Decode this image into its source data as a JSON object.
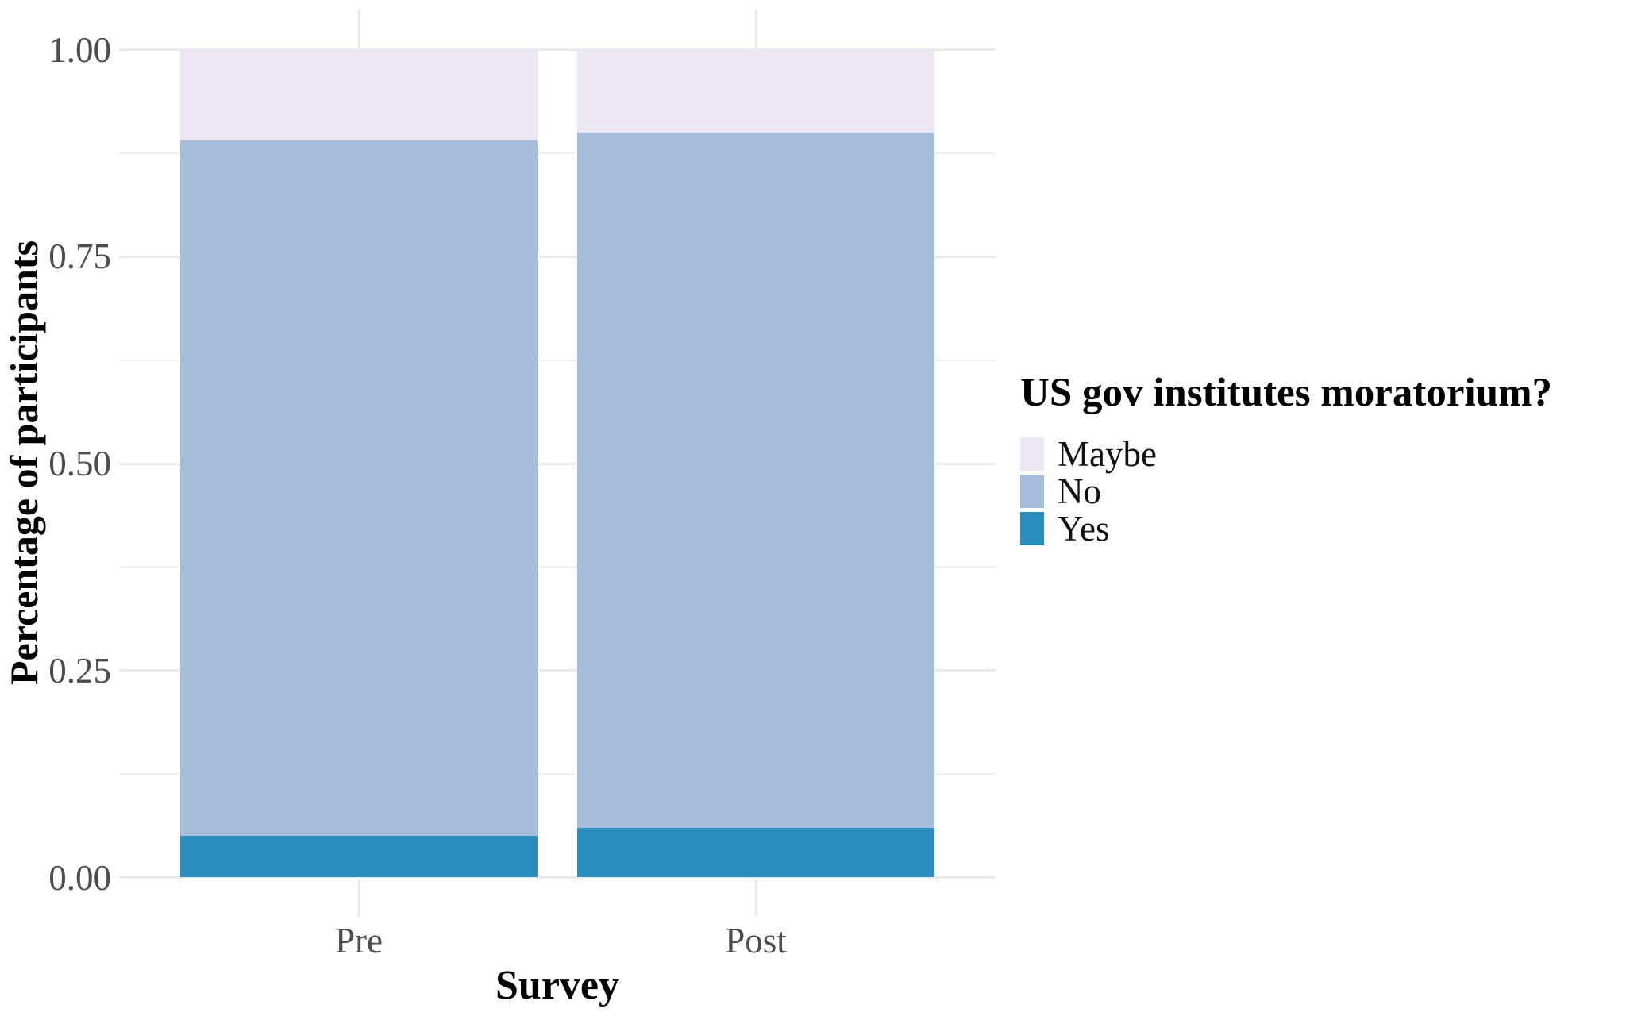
{
  "chart_data": {
    "type": "bar",
    "subtype": "stacked-percentage",
    "title": "",
    "xlabel": "Survey",
    "ylabel": "Percentage of participants",
    "categories": [
      "Pre",
      "Post"
    ],
    "series": [
      {
        "name": "Maybe",
        "color": "#ece7f2",
        "values": [
          0.11,
          0.1
        ]
      },
      {
        "name": "No",
        "color": "#a6bddb",
        "values": [
          0.84,
          0.84
        ]
      },
      {
        "name": "Yes",
        "color": "#2b8cbe",
        "values": [
          0.05,
          0.06
        ]
      }
    ],
    "stack_bottom_to_top": [
      "Yes",
      "No",
      "Maybe"
    ],
    "ylim": [
      0,
      1
    ],
    "y_ticks": [
      {
        "label": "0.00",
        "value": 0.0
      },
      {
        "label": "0.25",
        "value": 0.25
      },
      {
        "label": "0.50",
        "value": 0.5
      },
      {
        "label": "0.75",
        "value": 0.75
      },
      {
        "label": "1.00",
        "value": 1.0
      }
    ],
    "y_minor_gridlines": [
      0.125,
      0.375,
      0.625,
      0.875
    ],
    "grid": true,
    "legend": {
      "title": "US gov institutes moratorium?",
      "position": "right",
      "entries": [
        "Maybe",
        "No",
        "Yes"
      ]
    },
    "colors": {
      "background": "#ffffff",
      "major_grid": "#ebebeb",
      "minor_grid": "#f0eff2",
      "tick_label": "#4d4d4d",
      "axis_title": "#000000"
    }
  }
}
